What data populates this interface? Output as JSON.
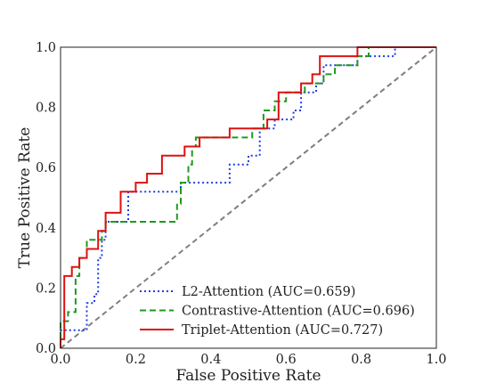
{
  "chart_data": {
    "type": "line",
    "title": "",
    "xlabel": "False Positive Rate",
    "ylabel": "True Positive Rate",
    "xlim": [
      0.0,
      1.0
    ],
    "ylim": [
      0.0,
      1.0
    ],
    "xticks": [
      "0.0",
      "0.2",
      "0.4",
      "0.6",
      "0.8",
      "1.0"
    ],
    "yticks": [
      "0.0",
      "0.2",
      "0.4",
      "0.6",
      "0.8",
      "1.0"
    ],
    "grid": false,
    "legend_position": "lower-right",
    "series": [
      {
        "name": "L2-Attention (AUC=0.659)",
        "color": "#1f3fe0",
        "style": "dotted",
        "points": [
          [
            0,
            0
          ],
          [
            0,
            0.06
          ],
          [
            0.07,
            0.06
          ],
          [
            0.07,
            0.15
          ],
          [
            0.09,
            0.15
          ],
          [
            0.09,
            0.18
          ],
          [
            0.1,
            0.18
          ],
          [
            0.1,
            0.3
          ],
          [
            0.11,
            0.3
          ],
          [
            0.11,
            0.36
          ],
          [
            0.12,
            0.36
          ],
          [
            0.12,
            0.42
          ],
          [
            0.18,
            0.42
          ],
          [
            0.18,
            0.52
          ],
          [
            0.32,
            0.52
          ],
          [
            0.32,
            0.55
          ],
          [
            0.45,
            0.55
          ],
          [
            0.45,
            0.61
          ],
          [
            0.5,
            0.61
          ],
          [
            0.5,
            0.64
          ],
          [
            0.53,
            0.64
          ],
          [
            0.53,
            0.73
          ],
          [
            0.57,
            0.73
          ],
          [
            0.57,
            0.76
          ],
          [
            0.62,
            0.76
          ],
          [
            0.62,
            0.79
          ],
          [
            0.64,
            0.79
          ],
          [
            0.64,
            0.85
          ],
          [
            0.68,
            0.85
          ],
          [
            0.68,
            0.88
          ],
          [
            0.7,
            0.88
          ],
          [
            0.7,
            0.94
          ],
          [
            0.79,
            0.94
          ],
          [
            0.79,
            0.97
          ],
          [
            0.89,
            0.97
          ],
          [
            0.89,
            1.0
          ],
          [
            1.0,
            1.0
          ]
        ]
      },
      {
        "name": "Contrastive-Attention (AUC=0.696)",
        "color": "#1e9a1e",
        "style": "dashed",
        "points": [
          [
            0,
            0
          ],
          [
            0,
            0.09
          ],
          [
            0.02,
            0.09
          ],
          [
            0.02,
            0.12
          ],
          [
            0.04,
            0.12
          ],
          [
            0.04,
            0.24
          ],
          [
            0.05,
            0.24
          ],
          [
            0.05,
            0.3
          ],
          [
            0.07,
            0.3
          ],
          [
            0.07,
            0.36
          ],
          [
            0.11,
            0.36
          ],
          [
            0.11,
            0.39
          ],
          [
            0.12,
            0.39
          ],
          [
            0.12,
            0.42
          ],
          [
            0.31,
            0.42
          ],
          [
            0.31,
            0.48
          ],
          [
            0.32,
            0.48
          ],
          [
            0.32,
            0.55
          ],
          [
            0.34,
            0.55
          ],
          [
            0.34,
            0.61
          ],
          [
            0.35,
            0.61
          ],
          [
            0.35,
            0.67
          ],
          [
            0.36,
            0.67
          ],
          [
            0.36,
            0.7
          ],
          [
            0.51,
            0.7
          ],
          [
            0.51,
            0.73
          ],
          [
            0.54,
            0.73
          ],
          [
            0.54,
            0.79
          ],
          [
            0.57,
            0.79
          ],
          [
            0.57,
            0.82
          ],
          [
            0.6,
            0.82
          ],
          [
            0.6,
            0.85
          ],
          [
            0.65,
            0.85
          ],
          [
            0.65,
            0.88
          ],
          [
            0.7,
            0.88
          ],
          [
            0.7,
            0.91
          ],
          [
            0.73,
            0.91
          ],
          [
            0.73,
            0.94
          ],
          [
            0.79,
            0.94
          ],
          [
            0.79,
            0.97
          ],
          [
            0.82,
            0.97
          ],
          [
            0.82,
            1.0
          ],
          [
            1.0,
            1.0
          ]
        ]
      },
      {
        "name": "Triplet-Attention (AUC=0.727)",
        "color": "#e01010",
        "style": "solid",
        "points": [
          [
            0,
            0
          ],
          [
            0,
            0.03
          ],
          [
            0.01,
            0.03
          ],
          [
            0.01,
            0.24
          ],
          [
            0.03,
            0.24
          ],
          [
            0.03,
            0.27
          ],
          [
            0.05,
            0.27
          ],
          [
            0.05,
            0.3
          ],
          [
            0.07,
            0.3
          ],
          [
            0.07,
            0.33
          ],
          [
            0.1,
            0.33
          ],
          [
            0.1,
            0.39
          ],
          [
            0.12,
            0.39
          ],
          [
            0.12,
            0.45
          ],
          [
            0.16,
            0.45
          ],
          [
            0.16,
            0.52
          ],
          [
            0.2,
            0.52
          ],
          [
            0.2,
            0.55
          ],
          [
            0.23,
            0.55
          ],
          [
            0.23,
            0.58
          ],
          [
            0.27,
            0.58
          ],
          [
            0.27,
            0.64
          ],
          [
            0.33,
            0.64
          ],
          [
            0.33,
            0.67
          ],
          [
            0.37,
            0.67
          ],
          [
            0.37,
            0.7
          ],
          [
            0.45,
            0.7
          ],
          [
            0.45,
            0.73
          ],
          [
            0.55,
            0.73
          ],
          [
            0.55,
            0.76
          ],
          [
            0.58,
            0.76
          ],
          [
            0.58,
            0.85
          ],
          [
            0.64,
            0.85
          ],
          [
            0.64,
            0.88
          ],
          [
            0.67,
            0.88
          ],
          [
            0.67,
            0.91
          ],
          [
            0.69,
            0.91
          ],
          [
            0.69,
            0.97
          ],
          [
            0.79,
            0.97
          ],
          [
            0.79,
            1.0
          ],
          [
            1.0,
            1.0
          ]
        ]
      },
      {
        "name": "",
        "color": "#7f7f7f",
        "style": "dashed",
        "role": "chance-diagonal",
        "points": [
          [
            0,
            0
          ],
          [
            1,
            1
          ]
        ]
      }
    ]
  }
}
